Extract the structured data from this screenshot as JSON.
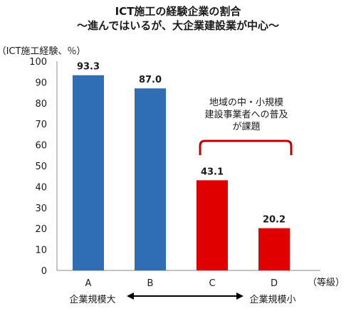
{
  "chart_data": {
    "type": "bar",
    "title_lines": [
      "ICT施工の経験企業の割合",
      "～進んではいるが、大企業建設業が中心～"
    ],
    "ylabel": "（ICT施工経験、％）",
    "xlabel": "（等級）",
    "ylim": [
      0,
      100
    ],
    "yticks": [
      0,
      10,
      20,
      30,
      40,
      50,
      60,
      70,
      80,
      90,
      100
    ],
    "categories": [
      "A",
      "B",
      "C",
      "D"
    ],
    "values": [
      93.3,
      87.0,
      43.1,
      20.2
    ],
    "value_labels": [
      "93.3",
      "87.0",
      "43.1",
      "20.2"
    ],
    "bar_colors": [
      "#2f6eb5",
      "#2f6eb5",
      "#e00000",
      "#e00000"
    ],
    "annotation_lines": [
      "地域の中・小規模",
      "建設事業者への普及",
      "が課題"
    ],
    "annotation_color": "#c00000",
    "size_label_left": "企業規模大",
    "size_label_right": "企業規模小",
    "grid": false
  }
}
